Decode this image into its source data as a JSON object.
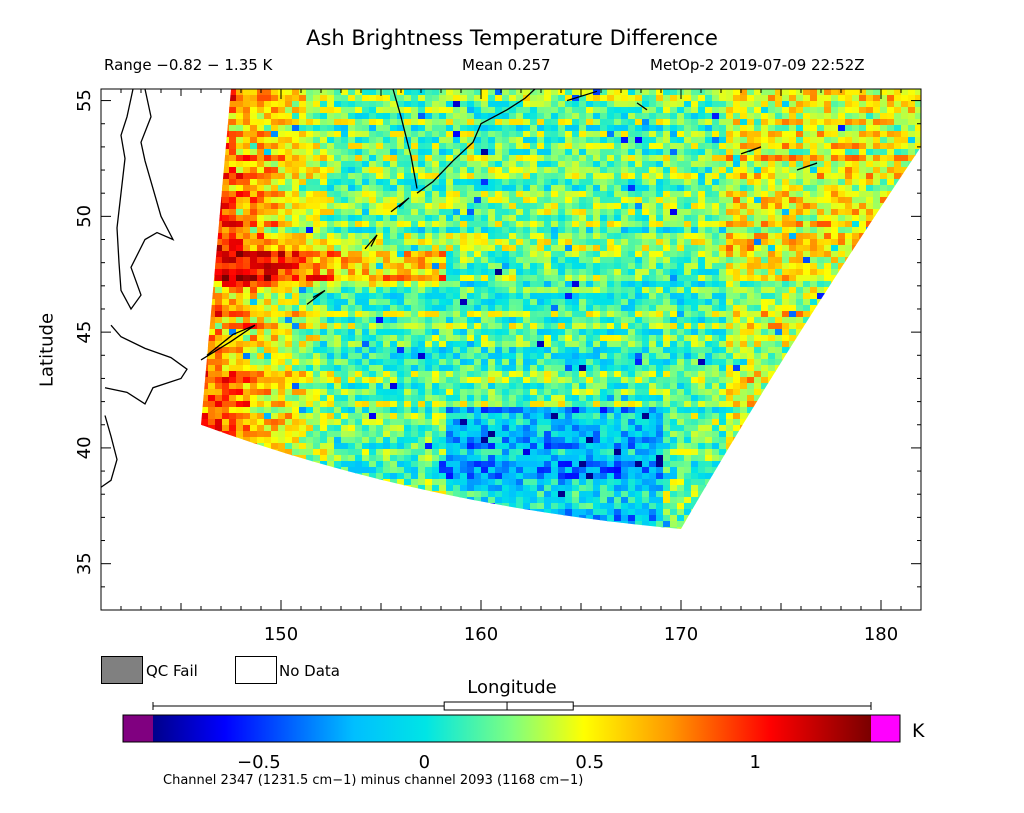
{
  "header": {
    "title": "Ash Brightness Temperature Difference",
    "range": "Range −0.82 − 1.35 K",
    "mean": "Mean 0.257",
    "satellite_time": "MetOp-2 2019-07-09 22:52Z"
  },
  "legend": {
    "qc_fail": "QC Fail",
    "no_data": "No Data",
    "qc_fail_color": "#808080",
    "no_data_color": "#ffffff"
  },
  "colorbar": {
    "unit": "K",
    "ticks": [
      {
        "value": -0.5,
        "label": "−0.5"
      },
      {
        "value": 0,
        "label": "0"
      },
      {
        "value": 0.5,
        "label": "0.5"
      },
      {
        "value": 1,
        "label": "1"
      }
    ],
    "min": -0.82,
    "max": 1.35,
    "underflow_color": "#800080",
    "overflow_color": "#ff00ff",
    "boxplot": {
      "min": -0.82,
      "q1": 0.06,
      "median": 0.25,
      "q3": 0.45,
      "max": 1.35
    },
    "caption": "Channel 2347 (1231.5 cm−1) minus channel 2093 (1168 cm−1)"
  },
  "chart_data": {
    "type": "heatmap",
    "title": "Ash Brightness Temperature Difference",
    "xlabel": "Longitude",
    "ylabel": "Latitude",
    "xlim": [
      141,
      182
    ],
    "ylim": [
      33,
      55.5
    ],
    "x_ticks": [
      150,
      160,
      170,
      180
    ],
    "y_ticks": [
      35,
      40,
      45,
      50,
      55
    ],
    "value_range": [
      -0.82,
      1.35
    ],
    "mean": 0.257,
    "swath_corners": [
      {
        "lon": 147.5,
        "lat": 55.5
      },
      {
        "lon": 182,
        "lat": 55.5
      },
      {
        "lon": 182,
        "lat": 53
      },
      {
        "lon": 170,
        "lat": 36.5
      },
      {
        "lon": 146,
        "lat": 41
      }
    ],
    "regions": [
      {
        "area": "western edge 146-153 E, 41-55 N",
        "value": 0.9
      },
      {
        "area": "band 147-158 E, 47-48.5 N",
        "value": 1.2
      },
      {
        "area": "central swath",
        "value": 0.2
      },
      {
        "area": "southern edge 160-168 E, 38-42 N",
        "value": -0.2
      },
      {
        "area": "eastern edge 172-182 E",
        "value": 0.6
      }
    ]
  }
}
